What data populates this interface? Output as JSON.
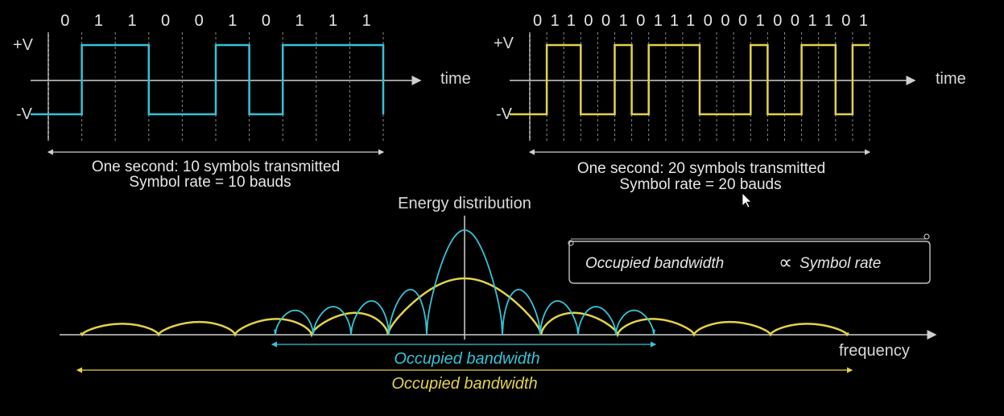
{
  "panel_left": {
    "bits": [
      "0",
      "1",
      "1",
      "0",
      "0",
      "1",
      "0",
      "1",
      "1",
      "1"
    ],
    "level_high": "+V",
    "level_low": "-V",
    "axis_label": "time",
    "caption_line1": "One second: 10 symbols transmitted",
    "caption_line2": "Symbol rate = 10 bauds",
    "color": "#36c2d6"
  },
  "panel_right": {
    "bits_text": "01100101110001001101",
    "level_high": "+V",
    "level_low": "-V",
    "axis_label": "time",
    "caption_line1": "One second: 20 symbols transmitted",
    "caption_line2": "Symbol rate = 20 bauds",
    "color": "#e3d24a"
  },
  "spectrum": {
    "title": "Energy distribution",
    "axis_label": "frequency",
    "bandwidth_label_cyan": "Occupied bandwidth",
    "bandwidth_label_yellow": "Occupied bandwidth",
    "cyan_color": "#36c2d6",
    "yellow_color": "#e3d24a"
  },
  "scroll_note": {
    "text_left": "Occupied bandwidth",
    "symbol": "∝",
    "text_right": "Symbol rate"
  }
}
